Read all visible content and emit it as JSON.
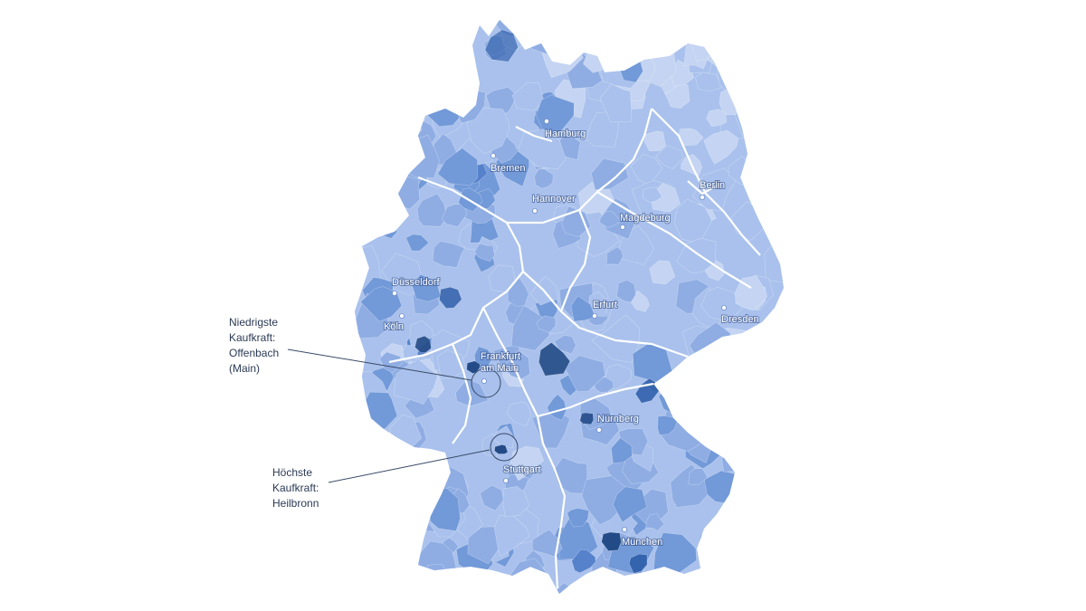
{
  "colors": {
    "ramp": [
      "#c4d4f2",
      "#a9c1ec",
      "#8fade3",
      "#7299d8",
      "#5682cb",
      "#3f6fbf",
      "#2a5aa8",
      "#234b87"
    ],
    "base": "#a9c1ec",
    "border": "#ffffff",
    "city_dot": "#ffffff",
    "annotation_text": "#2b3a55",
    "leader_line": "#3a4a66"
  },
  "cities": [
    {
      "id": "hamburg",
      "name": "Hamburg"
    },
    {
      "id": "bremen",
      "name": "Bremen"
    },
    {
      "id": "hannover",
      "name": "Hannover"
    },
    {
      "id": "berlin",
      "name": "Berlin"
    },
    {
      "id": "magdeburg",
      "name": "Magdeburg"
    },
    {
      "id": "duesseldorf",
      "name": "Düsseldorf"
    },
    {
      "id": "koeln",
      "name": "Köln"
    },
    {
      "id": "erfurt",
      "name": "Erfurt"
    },
    {
      "id": "dresden",
      "name": "Dresden"
    },
    {
      "id": "frankfurt",
      "name": "Frankfurt am Main"
    },
    {
      "id": "nuernberg",
      "name": "Nürnberg"
    },
    {
      "id": "stuttgart",
      "name": "Stuttgart"
    },
    {
      "id": "muenchen",
      "name": "München"
    }
  ],
  "annotations": {
    "lowest": {
      "lines": [
        "Niedrigste",
        "Kaufkraft:",
        "Offenbach",
        "(Main)"
      ]
    },
    "highest": {
      "lines": [
        "Höchste",
        "Kaufkraft:",
        "Heilbronn"
      ]
    }
  }
}
